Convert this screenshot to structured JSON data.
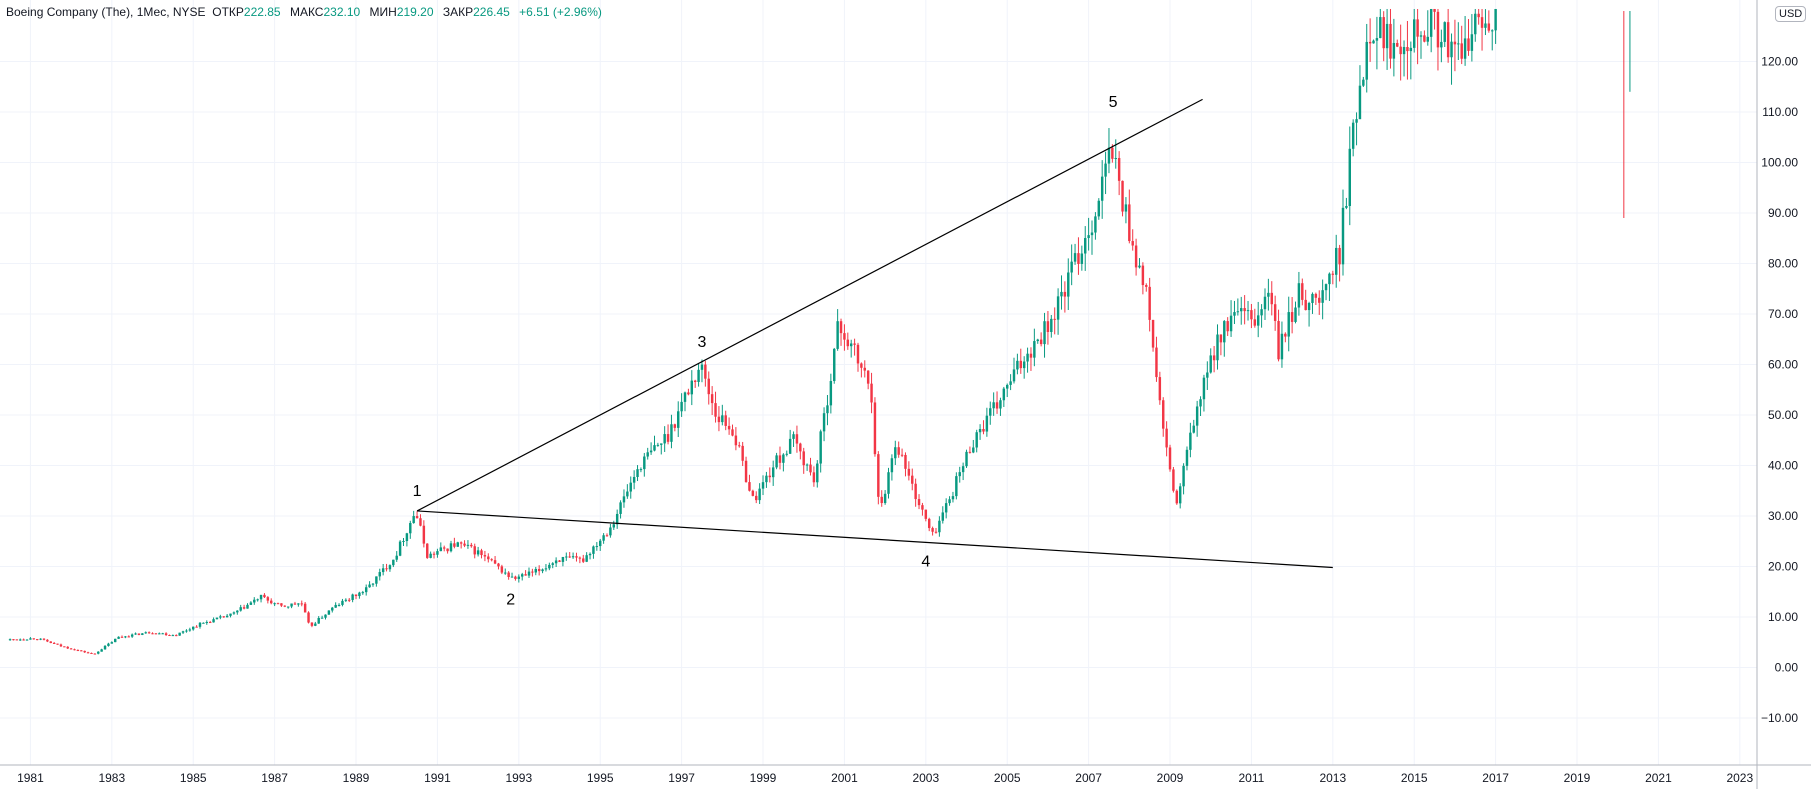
{
  "legend": {
    "symbol": "Boeing Company (The), 1Мес, NYSE",
    "open_label": "ОТКР",
    "open_value": "222.85",
    "high_label": "МАКС",
    "high_value": "232.10",
    "low_label": "МИН",
    "low_value": "219.20",
    "close_label": "ЗАКР",
    "close_value": "226.45",
    "change": "+6.51 (+2.96%)"
  },
  "currency": "USD",
  "colors": {
    "up": "#089981",
    "down": "#f23645",
    "grid": "#f0f3fa",
    "axis": "#b2b5be",
    "trendline": "#000000"
  },
  "chart_data": {
    "type": "candlestick",
    "title": "Boeing Company (The), 1Мес, NYSE",
    "xlim": [
      1980.4,
      2024.4
    ],
    "ylim": [
      -16,
      130.4
    ],
    "y_ticks": [
      -10,
      0,
      10,
      20,
      30,
      40,
      50,
      60,
      70,
      80,
      90,
      100,
      110,
      120
    ],
    "y_tick_labels": [
      "−10.00",
      "0.00",
      "10.00",
      "20.00",
      "30.00",
      "40.00",
      "50.00",
      "60.00",
      "70.00",
      "80.00",
      "90.00",
      "100.00",
      "110.00",
      "120.00"
    ],
    "x_ticks": [
      1981,
      1983,
      1985,
      1987,
      1989,
      1991,
      1993,
      1995,
      1997,
      1999,
      2001,
      2003,
      2005,
      2007,
      2009,
      2011,
      2013,
      2015,
      2017,
      2019,
      2021,
      2023
    ],
    "x_tick_labels": [
      "1981",
      "1983",
      "1985",
      "1987",
      "1989",
      "1991",
      "1993",
      "1995",
      "1997",
      "1999",
      "2001",
      "2003",
      "2005",
      "2007",
      "2009",
      "2011",
      "2013",
      "2015",
      "2017",
      "2019",
      "2021",
      "2023"
    ],
    "price_path": [
      [
        1980.5,
        5.5
      ],
      [
        1981.2,
        5.8
      ],
      [
        1981.8,
        4.2
      ],
      [
        1982.6,
        2.6
      ],
      [
        1983.2,
        6.0
      ],
      [
        1984.0,
        7.0
      ],
      [
        1984.6,
        6.4
      ],
      [
        1985.2,
        8.6
      ],
      [
        1986.0,
        10.5
      ],
      [
        1986.7,
        14.0
      ],
      [
        1987.2,
        12.0
      ],
      [
        1987.7,
        12.8
      ],
      [
        1987.9,
        8.0
      ],
      [
        1988.5,
        12.0
      ],
      [
        1989.3,
        15.5
      ],
      [
        1990.0,
        22.0
      ],
      [
        1990.5,
        31.0
      ],
      [
        1990.8,
        22.0
      ],
      [
        1991.5,
        24.5
      ],
      [
        1992.0,
        23.0
      ],
      [
        1992.9,
        17.5
      ],
      [
        1993.5,
        19.0
      ],
      [
        1994.0,
        21.5
      ],
      [
        1994.6,
        21.2
      ],
      [
        1995.3,
        28.0
      ],
      [
        1996.0,
        40.0
      ],
      [
        1996.7,
        46.0
      ],
      [
        1997.2,
        55.0
      ],
      [
        1997.5,
        60.0
      ],
      [
        1997.9,
        50.0
      ],
      [
        1998.3,
        47.0
      ],
      [
        1998.8,
        33.0
      ],
      [
        1999.3,
        40.0
      ],
      [
        1999.8,
        45.0
      ],
      [
        2000.3,
        37.0
      ],
      [
        2000.9,
        68.0
      ],
      [
        2001.3,
        62.0
      ],
      [
        2001.7,
        55.0
      ],
      [
        2001.9,
        30.0
      ],
      [
        2002.3,
        45.0
      ],
      [
        2002.7,
        36.0
      ],
      [
        2003.2,
        26.0
      ],
      [
        2003.6,
        33.0
      ],
      [
        2004.2,
        45.0
      ],
      [
        2004.8,
        52.0
      ],
      [
        2005.5,
        62.0
      ],
      [
        2006.2,
        70.0
      ],
      [
        2006.8,
        82.0
      ],
      [
        2007.2,
        90.0
      ],
      [
        2007.6,
        103.0
      ],
      [
        2008.0,
        88.0
      ],
      [
        2008.5,
        72.0
      ],
      [
        2008.9,
        45.0
      ],
      [
        2009.2,
        32.0
      ],
      [
        2009.6,
        48.0
      ],
      [
        2010.2,
        65.0
      ],
      [
        2010.7,
        70.0
      ],
      [
        2011.1,
        68.0
      ],
      [
        2011.5,
        75.0
      ],
      [
        2011.7,
        62.0
      ],
      [
        2012.2,
        74.0
      ],
      [
        2012.7,
        72.0
      ],
      [
        2013.2,
        82.0
      ],
      [
        2013.6,
        110.0
      ],
      [
        2013.95,
        128.0
      ],
      [
        2014.5,
        124.0
      ],
      [
        2015.0,
        127.0
      ],
      [
        2015.5,
        128.0
      ],
      [
        2016.1,
        120.0
      ],
      [
        2016.6,
        128.0
      ],
      [
        2017.0,
        130.0
      ]
    ],
    "visible_candles_2020": [
      {
        "x": 2020.15,
        "open": 130,
        "close": 130,
        "high": 130,
        "low": 89
      },
      {
        "x": 2020.3,
        "open": 122,
        "close": 130,
        "high": 130,
        "low": 114
      }
    ],
    "trendlines": [
      {
        "from": [
          1990.5,
          31.0
        ],
        "to": [
          2009.8,
          112.5
        ]
      },
      {
        "from": [
          1990.5,
          31.0
        ],
        "to": [
          2013.0,
          19.8
        ]
      }
    ],
    "wave_labels": [
      {
        "text": "1",
        "x": 1990.5,
        "y": 34.0
      },
      {
        "text": "2",
        "x": 1992.8,
        "y": 12.5
      },
      {
        "text": "3",
        "x": 1997.5,
        "y": 63.5
      },
      {
        "text": "4",
        "x": 2003.0,
        "y": 20.0
      },
      {
        "text": "5",
        "x": 2007.6,
        "y": 111.0
      }
    ]
  }
}
